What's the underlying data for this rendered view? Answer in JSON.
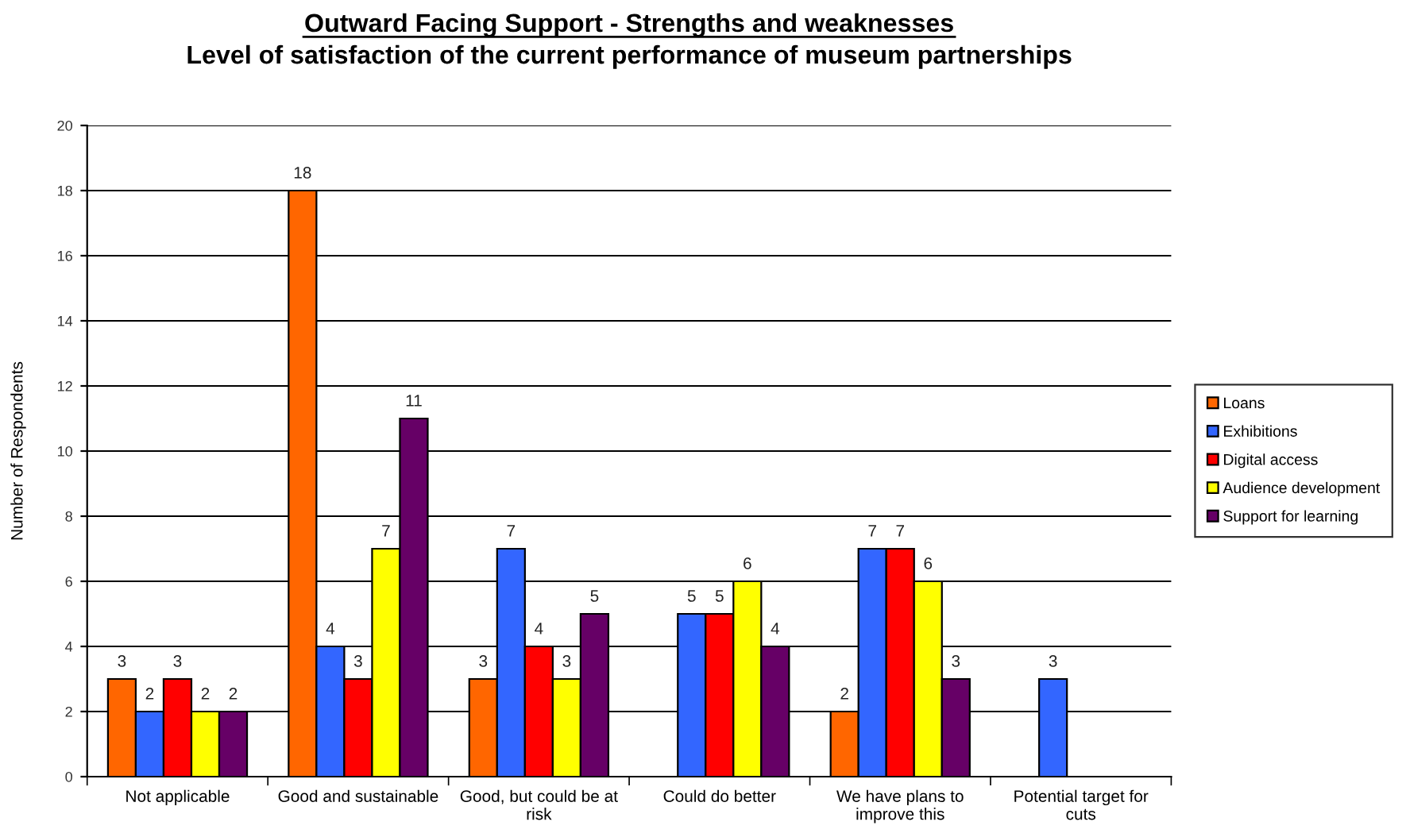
{
  "chart_data": {
    "type": "bar",
    "title": "Outward Facing Support - Strengths and weaknesses",
    "subtitle": "Level of satisfaction of the current performance of museum partnerships",
    "ylabel": "Number of Respondents",
    "categories": [
      "Not applicable",
      "Good and sustainable",
      "Good, but could be at risk",
      "Could do better",
      "We have plans to improve this",
      "Potential target for cuts"
    ],
    "series": [
      {
        "name": "Loans",
        "color": "#ff6600",
        "values": [
          3,
          18,
          3,
          null,
          2,
          null
        ]
      },
      {
        "name": "Exhibitions",
        "color": "#3366ff",
        "values": [
          2,
          4,
          7,
          5,
          7,
          3
        ]
      },
      {
        "name": "Digital access",
        "color": "#ff0000",
        "values": [
          3,
          3,
          4,
          5,
          7,
          null
        ]
      },
      {
        "name": "Audience development",
        "color": "#ffff00",
        "values": [
          2,
          7,
          3,
          6,
          6,
          null
        ]
      },
      {
        "name": "Support for learning",
        "color": "#660066",
        "values": [
          2,
          11,
          5,
          4,
          3,
          null
        ]
      }
    ],
    "ylim": [
      0,
      20
    ],
    "yticks": [
      0,
      2,
      4,
      6,
      8,
      10,
      12,
      14,
      16,
      18,
      20
    ],
    "grid": "y",
    "legend": "right",
    "data_labels": true
  }
}
